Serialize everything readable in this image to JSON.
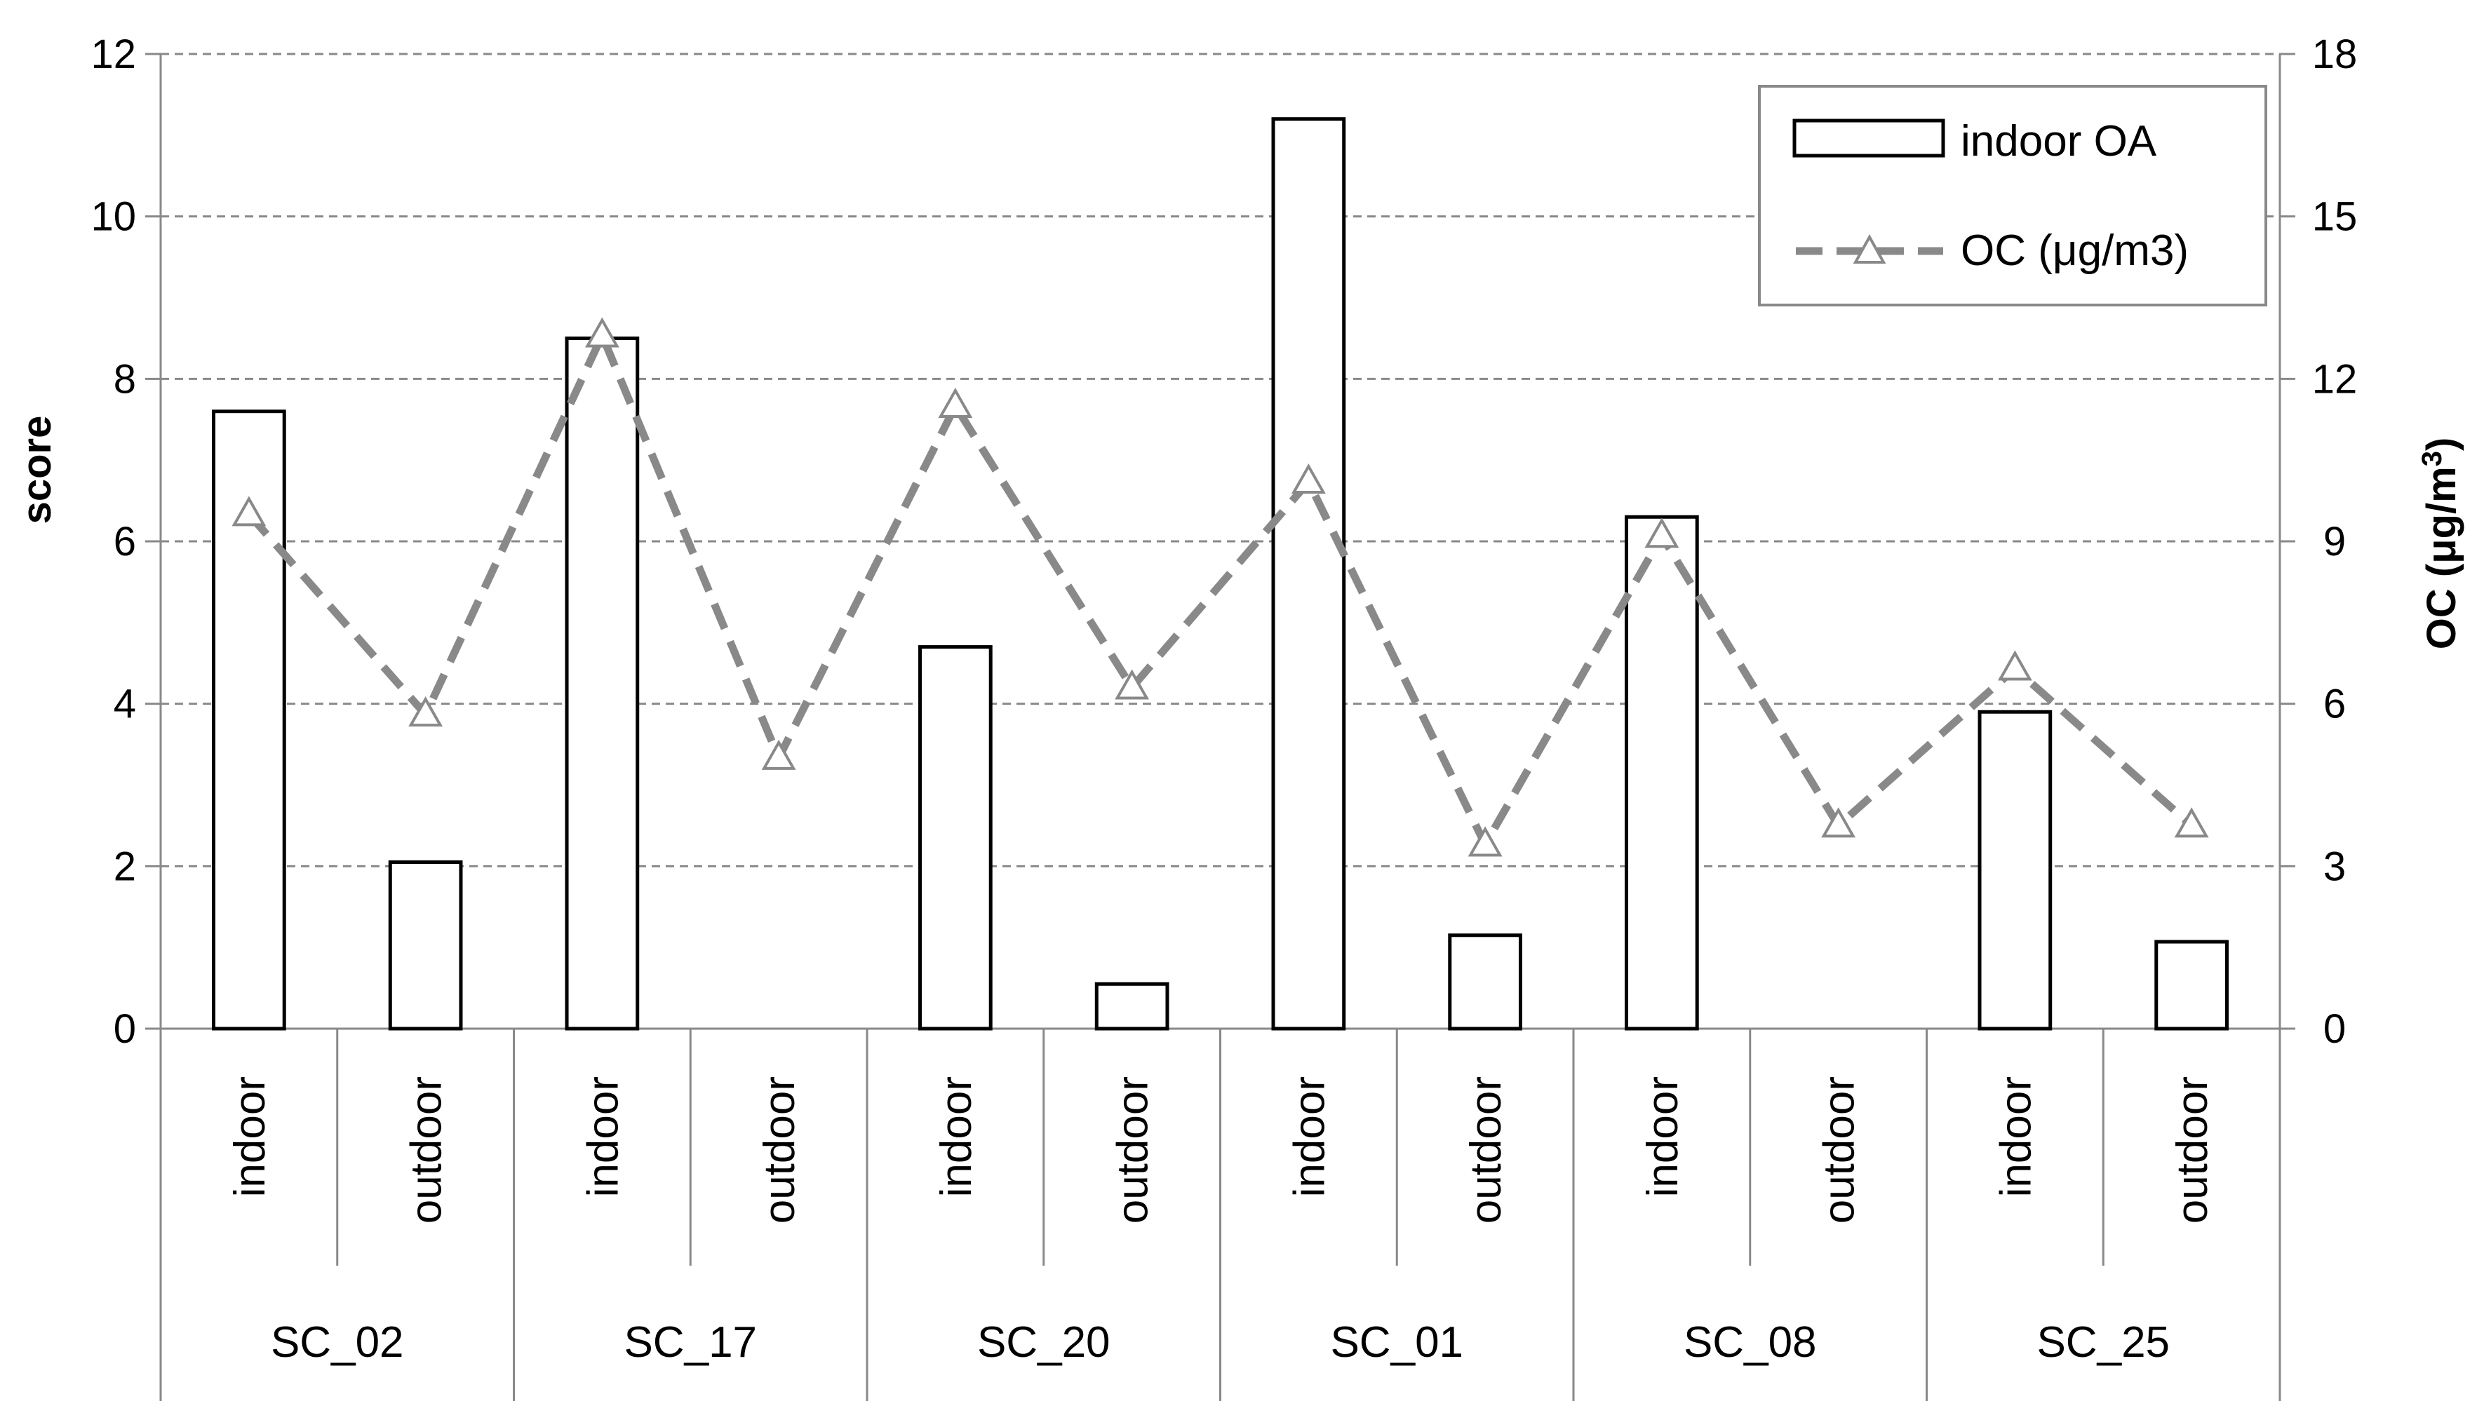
{
  "chart_data": {
    "type": "bar",
    "groups": [
      "SC_02",
      "SC_17",
      "SC_20",
      "SC_01",
      "SC_08",
      "SC_25"
    ],
    "categories": [
      "indoor",
      "outdoor",
      "indoor",
      "outdoor",
      "indoor",
      "outdoor",
      "indoor",
      "outdoor",
      "indoor",
      "outdoor",
      "indoor",
      "outdoor"
    ],
    "series": [
      {
        "name": "indoor OA",
        "type": "bar",
        "axis": "left",
        "values": [
          7.6,
          2.05,
          8.5,
          0,
          4.7,
          0.55,
          11.2,
          1.15,
          6.3,
          0,
          3.9,
          1.07
        ]
      },
      {
        "name": "OC (μg/m3)",
        "type": "line",
        "axis": "right",
        "style": "dashed with open triangle markers",
        "values": [
          9.5,
          5.8,
          12.8,
          5.0,
          11.5,
          6.3,
          10.1,
          3.4,
          9.1,
          3.75,
          6.65,
          3.75
        ]
      }
    ],
    "y_left": {
      "label": "score",
      "ylim": [
        0,
        12
      ],
      "ticks": [
        "0",
        "2",
        "4",
        "6",
        "8",
        "10",
        "12"
      ]
    },
    "y_right": {
      "label_prefix": "OC (μg/m",
      "label_sup": "3",
      "label_suffix": ")",
      "ylim": [
        0,
        18
      ],
      "ticks": [
        "0",
        "3",
        "6",
        "9",
        "12",
        "15",
        "18"
      ]
    },
    "grid": true,
    "legend_position": "top-right",
    "colors": {
      "bar_fill": "#ffffff",
      "bar_stroke": "#000000",
      "line": "#898989",
      "grid": "#898989",
      "axis": "#898989"
    }
  }
}
